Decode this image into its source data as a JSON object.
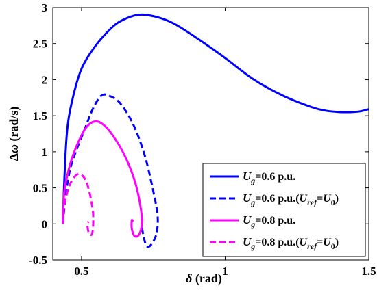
{
  "chart_data": {
    "type": "line",
    "xlabel": {
      "symbol": "δ",
      "unit": " (rad)"
    },
    "ylabel": {
      "symbol": "Δω",
      "unit": " (rad/s)"
    },
    "xlim": [
      0.4,
      1.5
    ],
    "ylim": [
      -0.5,
      3
    ],
    "xticks": [
      0.5,
      1,
      1.5
    ],
    "yticks": [
      -0.5,
      0,
      0.5,
      1,
      1.5,
      2,
      2.5,
      3
    ],
    "grid": false,
    "legend_position": "bottom-right",
    "series": [
      {
        "name": {
          "pre": "",
          "var": "U",
          "sub": "g",
          "post": "=0.6 p.u.",
          "ref": ""
        },
        "color": "#0000FF",
        "dash": "solid",
        "points": [
          [
            0.435,
            0
          ],
          [
            0.44,
            0.6
          ],
          [
            0.45,
            1.3
          ],
          [
            0.47,
            1.75
          ],
          [
            0.5,
            2.15
          ],
          [
            0.545,
            2.45
          ],
          [
            0.6,
            2.7
          ],
          [
            0.64,
            2.82
          ],
          [
            0.7,
            2.9
          ],
          [
            0.76,
            2.87
          ],
          [
            0.82,
            2.78
          ],
          [
            0.9,
            2.58
          ],
          [
            1.0,
            2.3
          ],
          [
            1.1,
            2.0
          ],
          [
            1.2,
            1.78
          ],
          [
            1.3,
            1.62
          ],
          [
            1.35,
            1.57
          ],
          [
            1.4,
            1.55
          ],
          [
            1.44,
            1.55
          ],
          [
            1.47,
            1.56
          ],
          [
            1.5,
            1.59
          ]
        ]
      },
      {
        "name": {
          "pre": "",
          "var": "U",
          "sub": "g",
          "post": "=0.6 p.u.(",
          "ref": "ref",
          "tail": "=U",
          "sub2": "0",
          "end": ")"
        },
        "color": "#0000FF",
        "dash": "dashed",
        "points": [
          [
            0.435,
            0
          ],
          [
            0.445,
            0.4
          ],
          [
            0.46,
            0.75
          ],
          [
            0.48,
            1.0
          ],
          [
            0.51,
            1.3
          ],
          [
            0.54,
            1.6
          ],
          [
            0.57,
            1.78
          ],
          [
            0.6,
            1.77
          ],
          [
            0.635,
            1.67
          ],
          [
            0.68,
            1.38
          ],
          [
            0.72,
            0.95
          ],
          [
            0.75,
            0.45
          ],
          [
            0.765,
            0.1
          ],
          [
            0.76,
            -0.15
          ],
          [
            0.74,
            -0.3
          ],
          [
            0.725,
            -0.3
          ],
          [
            0.715,
            -0.15
          ],
          [
            0.71,
            -0.05
          ]
        ]
      },
      {
        "name": {
          "pre": "",
          "var": "U",
          "sub": "g",
          "post": "=0.8 p.u.",
          "ref": ""
        },
        "color": "#FF00FF",
        "dash": "solid",
        "points": [
          [
            0.435,
            0
          ],
          [
            0.44,
            0.45
          ],
          [
            0.46,
            0.82
          ],
          [
            0.485,
            1.1
          ],
          [
            0.515,
            1.33
          ],
          [
            0.545,
            1.42
          ],
          [
            0.575,
            1.38
          ],
          [
            0.61,
            1.22
          ],
          [
            0.65,
            0.95
          ],
          [
            0.685,
            0.6
          ],
          [
            0.705,
            0.25
          ],
          [
            0.71,
            0.0
          ],
          [
            0.7,
            -0.15
          ],
          [
            0.685,
            -0.17
          ],
          [
            0.675,
            -0.07
          ],
          [
            0.675,
            0.05
          ],
          [
            0.68,
            0.03
          ]
        ]
      },
      {
        "name": {
          "pre": "",
          "var": "U",
          "sub": "g",
          "post": "=0.8 p.u.(",
          "ref": "ref",
          "tail": "=U",
          "sub2": "0",
          "end": ")"
        },
        "color": "#FF00FF",
        "dash": "dashed",
        "points": [
          [
            0.435,
            0
          ],
          [
            0.44,
            0.25
          ],
          [
            0.455,
            0.5
          ],
          [
            0.475,
            0.65
          ],
          [
            0.495,
            0.69
          ],
          [
            0.515,
            0.6
          ],
          [
            0.53,
            0.4
          ],
          [
            0.54,
            0.15
          ],
          [
            0.54,
            -0.05
          ],
          [
            0.535,
            -0.15
          ],
          [
            0.525,
            -0.12
          ],
          [
            0.52,
            0.0
          ],
          [
            0.525,
            0.03
          ]
        ]
      }
    ]
  }
}
